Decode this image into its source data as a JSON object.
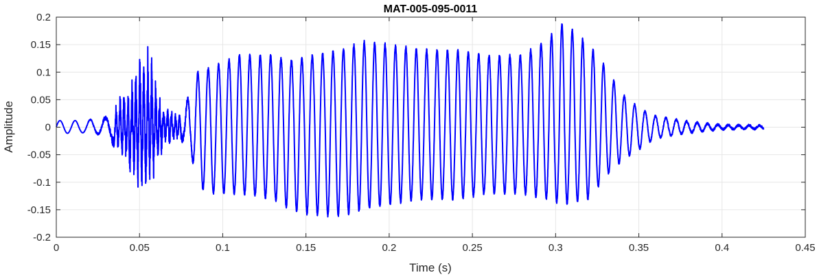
{
  "chart_data": {
    "type": "line",
    "title": "MAT-005-095-0011",
    "xlabel": "Time (s)",
    "ylabel": "Amplitude",
    "xlim": [
      0,
      0.45
    ],
    "ylim": [
      -0.2,
      0.2
    ],
    "xticks": [
      0,
      0.05,
      0.1,
      0.15,
      0.2,
      0.25,
      0.3,
      0.35,
      0.4,
      0.45
    ],
    "yticks": [
      -0.2,
      -0.15,
      -0.1,
      -0.05,
      0,
      0.05,
      0.1,
      0.15,
      0.2
    ],
    "xtick_labels": [
      "0",
      "0.05",
      "0.1",
      "0.15",
      "0.2",
      "0.25",
      "0.3",
      "0.35",
      "0.4",
      "0.45"
    ],
    "ytick_labels": [
      "-0.2",
      "-0.15",
      "-0.1",
      "-0.05",
      "0",
      "0.05",
      "0.1",
      "0.15",
      "0.2"
    ],
    "grid": true,
    "line_color": "#0000ff",
    "series": [
      {
        "signal_end_s": 0.425,
        "envelope": [
          {
            "t": 0.0,
            "pos": 0.012,
            "neg": -0.012,
            "noise": 0.0
          },
          {
            "t": 0.015,
            "pos": 0.012,
            "neg": -0.01,
            "noise": 0.0
          },
          {
            "t": 0.025,
            "pos": 0.015,
            "neg": -0.012,
            "noise": 0.002
          },
          {
            "t": 0.032,
            "pos": 0.018,
            "neg": -0.018,
            "noise": 0.005
          },
          {
            "t": 0.04,
            "pos": 0.05,
            "neg": -0.05,
            "noise": 0.02
          },
          {
            "t": 0.045,
            "pos": 0.07,
            "neg": -0.07,
            "noise": 0.03
          },
          {
            "t": 0.05,
            "pos": 0.1,
            "neg": -0.08,
            "noise": 0.04
          },
          {
            "t": 0.055,
            "pos": 0.13,
            "neg": -0.1,
            "noise": 0.04
          },
          {
            "t": 0.06,
            "pos": 0.07,
            "neg": -0.06,
            "noise": 0.03
          },
          {
            "t": 0.065,
            "pos": 0.03,
            "neg": -0.03,
            "noise": 0.015
          },
          {
            "t": 0.07,
            "pos": 0.025,
            "neg": -0.025,
            "noise": 0.01
          },
          {
            "t": 0.075,
            "pos": 0.02,
            "neg": -0.02,
            "noise": 0.008
          },
          {
            "t": 0.08,
            "pos": 0.06,
            "neg": -0.03,
            "noise": 0.005
          },
          {
            "t": 0.085,
            "pos": 0.1,
            "neg": -0.11,
            "noise": 0.003
          },
          {
            "t": 0.095,
            "pos": 0.11,
            "neg": -0.12,
            "noise": 0.003
          },
          {
            "t": 0.11,
            "pos": 0.13,
            "neg": -0.12,
            "noise": 0.003
          },
          {
            "t": 0.13,
            "pos": 0.13,
            "neg": -0.13,
            "noise": 0.003
          },
          {
            "t": 0.14,
            "pos": 0.12,
            "neg": -0.15,
            "noise": 0.003
          },
          {
            "t": 0.155,
            "pos": 0.13,
            "neg": -0.16,
            "noise": 0.003
          },
          {
            "t": 0.17,
            "pos": 0.14,
            "neg": -0.16,
            "noise": 0.003
          },
          {
            "t": 0.185,
            "pos": 0.155,
            "neg": -0.15,
            "noise": 0.003
          },
          {
            "t": 0.2,
            "pos": 0.15,
            "neg": -0.14,
            "noise": 0.003
          },
          {
            "t": 0.22,
            "pos": 0.14,
            "neg": -0.13,
            "noise": 0.003
          },
          {
            "t": 0.24,
            "pos": 0.14,
            "neg": -0.13,
            "noise": 0.003
          },
          {
            "t": 0.26,
            "pos": 0.13,
            "neg": -0.12,
            "noise": 0.003
          },
          {
            "t": 0.28,
            "pos": 0.13,
            "neg": -0.12,
            "noise": 0.003
          },
          {
            "t": 0.295,
            "pos": 0.16,
            "neg": -0.13,
            "noise": 0.003
          },
          {
            "t": 0.305,
            "pos": 0.19,
            "neg": -0.14,
            "noise": 0.003
          },
          {
            "t": 0.32,
            "pos": 0.15,
            "neg": -0.13,
            "noise": 0.003
          },
          {
            "t": 0.33,
            "pos": 0.11,
            "neg": -0.09,
            "noise": 0.002
          },
          {
            "t": 0.34,
            "pos": 0.06,
            "neg": -0.06,
            "noise": 0.002
          },
          {
            "t": 0.35,
            "pos": 0.035,
            "neg": -0.04,
            "noise": 0.002
          },
          {
            "t": 0.36,
            "pos": 0.02,
            "neg": -0.02,
            "noise": 0.002
          },
          {
            "t": 0.38,
            "pos": 0.01,
            "neg": -0.01,
            "noise": 0.002
          },
          {
            "t": 0.4,
            "pos": 0.004,
            "neg": -0.004,
            "noise": 0.002
          },
          {
            "t": 0.425,
            "pos": 0.003,
            "neg": -0.003,
            "noise": 0.002
          }
        ]
      }
    ]
  }
}
